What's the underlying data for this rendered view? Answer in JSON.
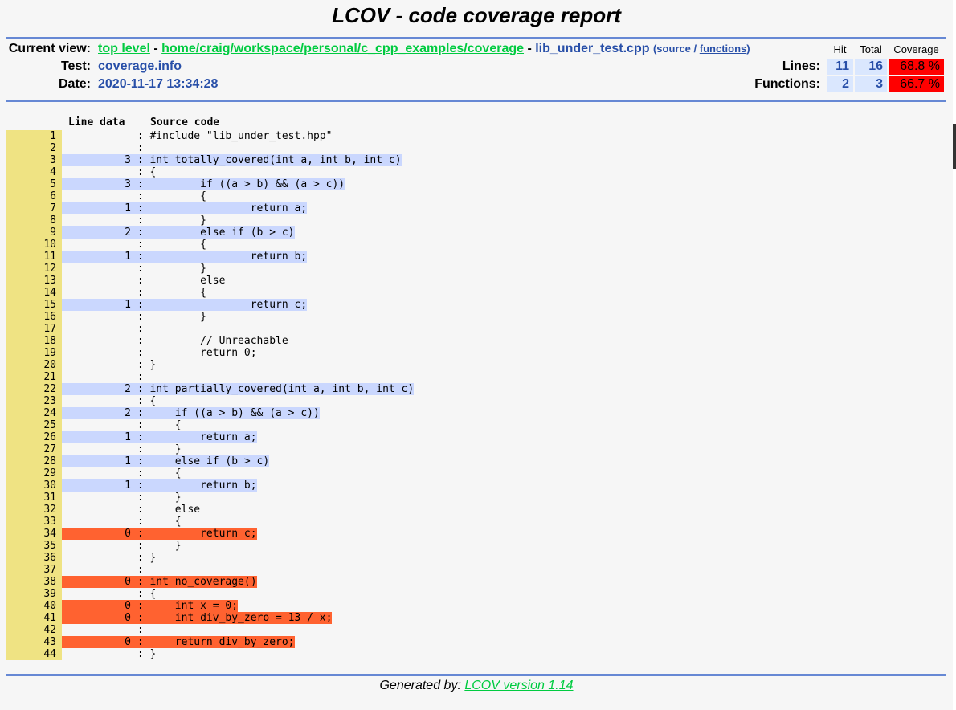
{
  "title": "LCOV - code coverage report",
  "header": {
    "current_view_label": "Current view:",
    "crumb_top": "top level",
    "crumb_sep1": " - ",
    "crumb_dir": "home/craig/workspace/personal/c_cpp_examples/coverage",
    "crumb_sep2": " - ",
    "crumb_file": "lib_under_test.cpp",
    "view_open": "(",
    "view_source": "source",
    "view_slash": " / ",
    "view_functions": "functions",
    "view_close": ")",
    "test_label": "Test:",
    "test_value": "coverage.info",
    "date_label": "Date:",
    "date_value": "2020-11-17 13:34:28"
  },
  "stats": {
    "col_hit": "Hit",
    "col_total": "Total",
    "col_coverage": "Coverage",
    "lines_label": "Lines:",
    "lines_hit": "11",
    "lines_total": "16",
    "lines_coverage": "68.8 %",
    "functions_label": "Functions:",
    "functions_hit": "2",
    "functions_total": "3",
    "functions_coverage": "66.7 %"
  },
  "code_header": {
    "line_data": "Line data",
    "source_code": "Source code"
  },
  "colors": {
    "hit": "#cad7fe",
    "miss": "#ff6230",
    "line_number_bg": "#efe383",
    "coverage_low": "#ff0000"
  },
  "lines": [
    {
      "n": "1",
      "count": "",
      "src": "#include \"lib_under_test.hpp\"",
      "status": "none"
    },
    {
      "n": "2",
      "count": "",
      "src": "",
      "status": "none"
    },
    {
      "n": "3",
      "count": "3",
      "src": "int totally_covered(int a, int b, int c)",
      "status": "hit"
    },
    {
      "n": "4",
      "count": "",
      "src": "{",
      "status": "none"
    },
    {
      "n": "5",
      "count": "3",
      "src": "        if ((a > b) && (a > c))",
      "status": "hit"
    },
    {
      "n": "6",
      "count": "",
      "src": "        {",
      "status": "none"
    },
    {
      "n": "7",
      "count": "1",
      "src": "                return a;",
      "status": "hit"
    },
    {
      "n": "8",
      "count": "",
      "src": "        }",
      "status": "none"
    },
    {
      "n": "9",
      "count": "2",
      "src": "        else if (b > c)",
      "status": "hit"
    },
    {
      "n": "10",
      "count": "",
      "src": "        {",
      "status": "none"
    },
    {
      "n": "11",
      "count": "1",
      "src": "                return b;",
      "status": "hit"
    },
    {
      "n": "12",
      "count": "",
      "src": "        }",
      "status": "none"
    },
    {
      "n": "13",
      "count": "",
      "src": "        else",
      "status": "none"
    },
    {
      "n": "14",
      "count": "",
      "src": "        {",
      "status": "none"
    },
    {
      "n": "15",
      "count": "1",
      "src": "                return c;",
      "status": "hit"
    },
    {
      "n": "16",
      "count": "",
      "src": "        }",
      "status": "none"
    },
    {
      "n": "17",
      "count": "",
      "src": "",
      "status": "none"
    },
    {
      "n": "18",
      "count": "",
      "src": "        // Unreachable",
      "status": "none"
    },
    {
      "n": "19",
      "count": "",
      "src": "        return 0;",
      "status": "none"
    },
    {
      "n": "20",
      "count": "",
      "src": "}",
      "status": "none"
    },
    {
      "n": "21",
      "count": "",
      "src": "",
      "status": "none"
    },
    {
      "n": "22",
      "count": "2",
      "src": "int partially_covered(int a, int b, int c)",
      "status": "hit"
    },
    {
      "n": "23",
      "count": "",
      "src": "{",
      "status": "none"
    },
    {
      "n": "24",
      "count": "2",
      "src": "    if ((a > b) && (a > c))",
      "status": "hit"
    },
    {
      "n": "25",
      "count": "",
      "src": "    {",
      "status": "none"
    },
    {
      "n": "26",
      "count": "1",
      "src": "        return a;",
      "status": "hit"
    },
    {
      "n": "27",
      "count": "",
      "src": "    }",
      "status": "none"
    },
    {
      "n": "28",
      "count": "1",
      "src": "    else if (b > c)",
      "status": "hit"
    },
    {
      "n": "29",
      "count": "",
      "src": "    {",
      "status": "none"
    },
    {
      "n": "30",
      "count": "1",
      "src": "        return b;",
      "status": "hit"
    },
    {
      "n": "31",
      "count": "",
      "src": "    }",
      "status": "none"
    },
    {
      "n": "32",
      "count": "",
      "src": "    else",
      "status": "none"
    },
    {
      "n": "33",
      "count": "",
      "src": "    {",
      "status": "none"
    },
    {
      "n": "34",
      "count": "0",
      "src": "        return c;",
      "status": "miss"
    },
    {
      "n": "35",
      "count": "",
      "src": "    }",
      "status": "none"
    },
    {
      "n": "36",
      "count": "",
      "src": "}",
      "status": "none"
    },
    {
      "n": "37",
      "count": "",
      "src": "",
      "status": "none"
    },
    {
      "n": "38",
      "count": "0",
      "src": "int no_coverage()",
      "status": "miss"
    },
    {
      "n": "39",
      "count": "",
      "src": "{",
      "status": "none"
    },
    {
      "n": "40",
      "count": "0",
      "src": "    int x = 0;",
      "status": "miss"
    },
    {
      "n": "41",
      "count": "0",
      "src": "    int div_by_zero = 13 / x;",
      "status": "miss"
    },
    {
      "n": "42",
      "count": "",
      "src": "",
      "status": "none"
    },
    {
      "n": "43",
      "count": "0",
      "src": "    return div_by_zero;",
      "status": "miss"
    },
    {
      "n": "44",
      "count": "",
      "src": "}",
      "status": "none"
    }
  ],
  "footer": {
    "generated_by": "Generated by: ",
    "lcov_link": "LCOV version 1.14"
  }
}
